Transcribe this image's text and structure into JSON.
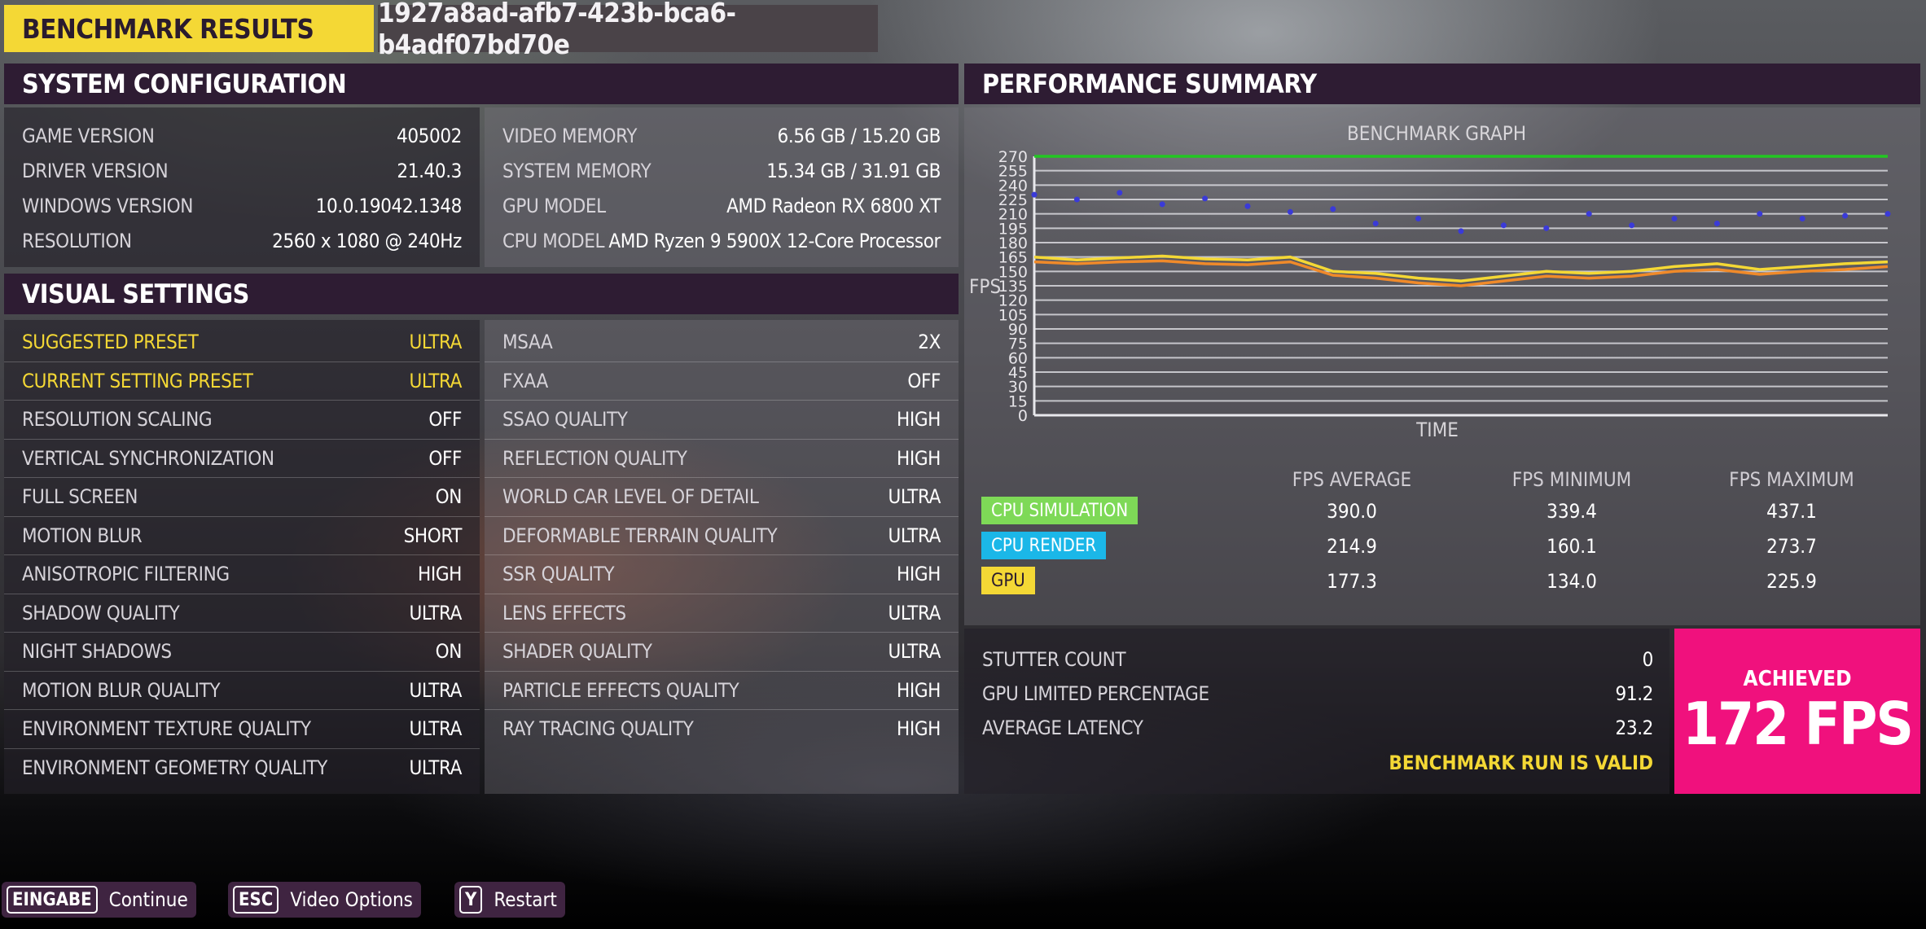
{
  "header": {
    "title": "BENCHMARK RESULTS",
    "run_id": "1927a8ad-afb7-423b-bca6-b4adf07bd70e"
  },
  "system_config": {
    "title": "SYSTEM CONFIGURATION",
    "left": [
      {
        "label": "GAME VERSION",
        "value": "405002"
      },
      {
        "label": "DRIVER VERSION",
        "value": "21.40.3"
      },
      {
        "label": "WINDOWS VERSION",
        "value": "10.0.19042.1348"
      },
      {
        "label": "RESOLUTION",
        "value": "2560 x 1080 @ 240Hz"
      }
    ],
    "right": [
      {
        "label": "VIDEO MEMORY",
        "value": "6.56 GB / 15.20 GB"
      },
      {
        "label": "SYSTEM MEMORY",
        "value": "15.34 GB / 31.91 GB"
      },
      {
        "label": "GPU MODEL",
        "value": "AMD Radeon RX 6800 XT"
      },
      {
        "label": "CPU MODEL",
        "value": "AMD Ryzen 9 5900X 12-Core Processor"
      }
    ]
  },
  "visual_settings": {
    "title": "VISUAL SETTINGS",
    "left": [
      {
        "label": "SUGGESTED PRESET",
        "value": "ULTRA"
      },
      {
        "label": "CURRENT SETTING PRESET",
        "value": "ULTRA"
      },
      {
        "label": "RESOLUTION SCALING",
        "value": "OFF"
      },
      {
        "label": "VERTICAL SYNCHRONIZATION",
        "value": "OFF"
      },
      {
        "label": "FULL SCREEN",
        "value": "ON"
      },
      {
        "label": "MOTION BLUR",
        "value": "SHORT"
      },
      {
        "label": "ANISOTROPIC FILTERING",
        "value": "HIGH"
      },
      {
        "label": "SHADOW QUALITY",
        "value": "ULTRA"
      },
      {
        "label": "NIGHT SHADOWS",
        "value": "ON"
      },
      {
        "label": "MOTION BLUR QUALITY",
        "value": "ULTRA"
      },
      {
        "label": "ENVIRONMENT TEXTURE QUALITY",
        "value": "ULTRA"
      },
      {
        "label": "ENVIRONMENT GEOMETRY QUALITY",
        "value": "ULTRA"
      }
    ],
    "right": [
      {
        "label": "MSAA",
        "value": "2X"
      },
      {
        "label": "FXAA",
        "value": "OFF"
      },
      {
        "label": "SSAO QUALITY",
        "value": "HIGH"
      },
      {
        "label": "REFLECTION QUALITY",
        "value": "HIGH"
      },
      {
        "label": "WORLD CAR LEVEL OF DETAIL",
        "value": "ULTRA"
      },
      {
        "label": "DEFORMABLE TERRAIN QUALITY",
        "value": "ULTRA"
      },
      {
        "label": "SSR QUALITY",
        "value": "HIGH"
      },
      {
        "label": "LENS EFFECTS",
        "value": "ULTRA"
      },
      {
        "label": "SHADER QUALITY",
        "value": "ULTRA"
      },
      {
        "label": "PARTICLE EFFECTS QUALITY",
        "value": "HIGH"
      },
      {
        "label": "RAY TRACING QUALITY",
        "value": "HIGH"
      }
    ]
  },
  "performance": {
    "title": "PERFORMANCE SUMMARY",
    "stat_headers": [
      "FPS AVERAGE",
      "FPS MINIMUM",
      "FPS MAXIMUM"
    ],
    "stats": [
      {
        "name": "CPU SIMULATION",
        "color": "#7ed957",
        "text_color": "#ffffff",
        "avg": "390.0",
        "min": "339.4",
        "max": "437.1"
      },
      {
        "name": "CPU RENDER",
        "color": "#1bb7e8",
        "text_color": "#ffffff",
        "avg": "214.9",
        "min": "160.1",
        "max": "273.7"
      },
      {
        "name": "GPU",
        "color": "#f4d835",
        "text_color": "#2a1b2e",
        "avg": "177.3",
        "min": "134.0",
        "max": "225.9"
      }
    ],
    "summary": [
      {
        "label": "STUTTER COUNT",
        "value": "0"
      },
      {
        "label": "GPU LIMITED PERCENTAGE",
        "value": "91.2"
      },
      {
        "label": "AVERAGE LATENCY",
        "value": "23.2"
      }
    ],
    "valid_text": "BENCHMARK RUN IS VALID",
    "achieved_label": "ACHIEVED",
    "achieved_value": "172 FPS"
  },
  "chart_data": {
    "type": "line",
    "title": "BENCHMARK GRAPH",
    "xlabel": "TIME",
    "ylabel": "FPS",
    "ylim": [
      0,
      270
    ],
    "yticks": [
      0,
      15,
      30,
      45,
      60,
      75,
      90,
      105,
      120,
      135,
      150,
      165,
      180,
      195,
      210,
      225,
      240,
      255,
      270
    ],
    "grid": true,
    "x": [
      0,
      5,
      10,
      15,
      20,
      25,
      30,
      35,
      40,
      45,
      50,
      55,
      60,
      65,
      70,
      75,
      80,
      85,
      90,
      95,
      100
    ],
    "series": [
      {
        "color": "#3a3ad8",
        "style": "scatter",
        "values": [
          230,
          225,
          232,
          220,
          226,
          218,
          212,
          215,
          200,
          205,
          192,
          198,
          195,
          210,
          198,
          205,
          200,
          210,
          205,
          208,
          210
        ]
      },
      {
        "color": "#f4d835",
        "style": "line",
        "values": [
          165,
          162,
          164,
          166,
          163,
          162,
          165,
          150,
          148,
          143,
          140,
          145,
          150,
          148,
          150,
          155,
          158,
          152,
          155,
          158,
          160
        ]
      },
      {
        "color": "#f08a2a",
        "style": "line",
        "values": [
          160,
          158,
          160,
          161,
          158,
          157,
          160,
          146,
          143,
          138,
          135,
          140,
          145,
          143,
          145,
          150,
          152,
          147,
          150,
          152,
          155
        ]
      },
      {
        "color": "#22c722",
        "style": "line",
        "values": [
          270,
          270,
          270,
          270,
          270,
          270,
          270,
          270,
          270,
          270,
          270,
          270,
          270,
          270,
          270,
          270,
          270,
          270,
          270,
          270,
          270
        ]
      }
    ]
  },
  "prompts": [
    {
      "key": "EINGABE",
      "label": "Continue"
    },
    {
      "key": "ESC",
      "label": "Video Options"
    },
    {
      "key": "Y",
      "label": "Restart"
    }
  ]
}
